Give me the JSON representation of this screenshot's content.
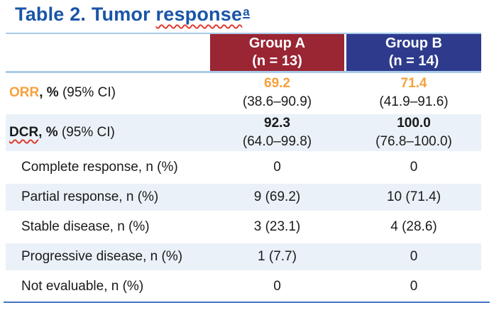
{
  "title": {
    "prefix": "Table 2. Tumor ",
    "misspelled_word": "response",
    "footnote_marker": "a"
  },
  "colors": {
    "title_blue": "#1955A8",
    "group_a_maroon": "#9A2533",
    "group_b_navy": "#2E3B8D",
    "row_stripe_blue": "#EAF1F8",
    "divider_light_blue": "#A8CBE8",
    "bottom_rule_blue": "#4472C4",
    "accent_orange": "#F7A13B",
    "squiggle_red": "#E03C31"
  },
  "table": {
    "header": {
      "group_a": {
        "name": "Group A",
        "n": "(n = 13)"
      },
      "group_b": {
        "name": "Group B",
        "n": "(n = 14)"
      }
    },
    "summary_rows": [
      {
        "term": "ORR",
        "unit": ", %",
        "ci_label": " (95% CI)",
        "group_a": {
          "value": "69.2",
          "ci": "(38.6–90.9)"
        },
        "group_b": {
          "value": "71.4",
          "ci": "(41.9–91.6)"
        }
      },
      {
        "term": "DCR",
        "unit": ", %",
        "ci_label": " (95% CI)",
        "group_a": {
          "value": "92.3",
          "ci": "(64.0–99.8)"
        },
        "group_b": {
          "value": "100.0",
          "ci": "(76.8–100.0)"
        }
      }
    ],
    "detail_rows": [
      {
        "label": "Complete response, n (%)",
        "group_a": "0",
        "group_b": "0"
      },
      {
        "label": "Partial response, n (%)",
        "group_a": "9 (69.2)",
        "group_b": "10 (71.4)"
      },
      {
        "label": "Stable disease, n (%)",
        "group_a": "3 (23.1)",
        "group_b": "4 (28.6)"
      },
      {
        "label": "Progressive disease, n (%)",
        "group_a": "1 (7.7)",
        "group_b": "0"
      },
      {
        "label": "Not evaluable, n (%)",
        "group_a": "0",
        "group_b": "0"
      }
    ]
  },
  "chart_data": {
    "type": "table",
    "title": "Table 2. Tumor response",
    "footnote_marker": "a",
    "columns": [
      "",
      "Group A (n = 13)",
      "Group B (n = 14)"
    ],
    "rows": [
      [
        "ORR, % (95% CI)",
        "69.2 (38.6–90.9)",
        "71.4 (41.9–91.6)"
      ],
      [
        "DCR, % (95% CI)",
        "92.3 (64.0–99.8)",
        "100.0 (76.8–100.0)"
      ],
      [
        "Complete response, n (%)",
        "0",
        "0"
      ],
      [
        "Partial response, n (%)",
        "9 (69.2)",
        "10 (71.4)"
      ],
      [
        "Stable disease, n (%)",
        "3 (23.1)",
        "4 (28.6)"
      ],
      [
        "Progressive disease, n (%)",
        "1 (7.7)",
        "0"
      ],
      [
        "Not evaluable, n (%)",
        "0",
        "0"
      ]
    ]
  }
}
